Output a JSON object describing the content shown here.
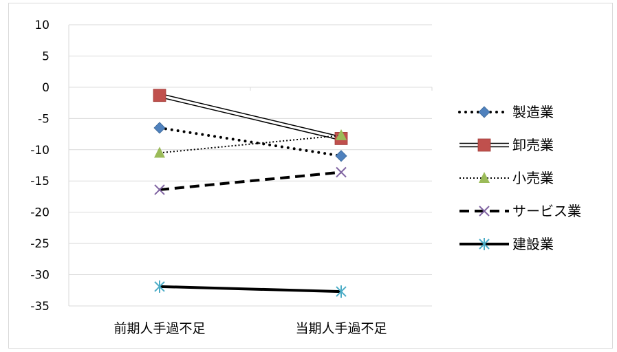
{
  "chart_data": {
    "type": "line",
    "categories": [
      "前期人手過不足",
      "当期人手過不足"
    ],
    "ylim": [
      -35,
      10
    ],
    "yticks": [
      10,
      5,
      0,
      -5,
      -10,
      -15,
      -20,
      -25,
      -30,
      -35
    ],
    "grid": true,
    "legend_position": "right",
    "series": [
      {
        "name": "製造業",
        "values": [
          -6.5,
          -11
        ],
        "color": "#4f81bd",
        "line": "dotted",
        "marker": "diamond"
      },
      {
        "name": "卸売業",
        "values": [
          -1.3,
          -8.2
        ],
        "color": "#c0504d",
        "line": "double",
        "marker": "square"
      },
      {
        "name": "小売業",
        "values": [
          -10.5,
          -7.7
        ],
        "color": "#9bbb59",
        "line": "dotted-thin",
        "marker": "triangle"
      },
      {
        "name": "サービス業",
        "values": [
          -16.4,
          -13.6
        ],
        "color": "#8064a2",
        "line": "dashed",
        "marker": "x"
      },
      {
        "name": "建設業",
        "values": [
          -31.9,
          -32.7
        ],
        "color": "#4bacc6",
        "line": "solid",
        "marker": "asterisk"
      }
    ]
  }
}
